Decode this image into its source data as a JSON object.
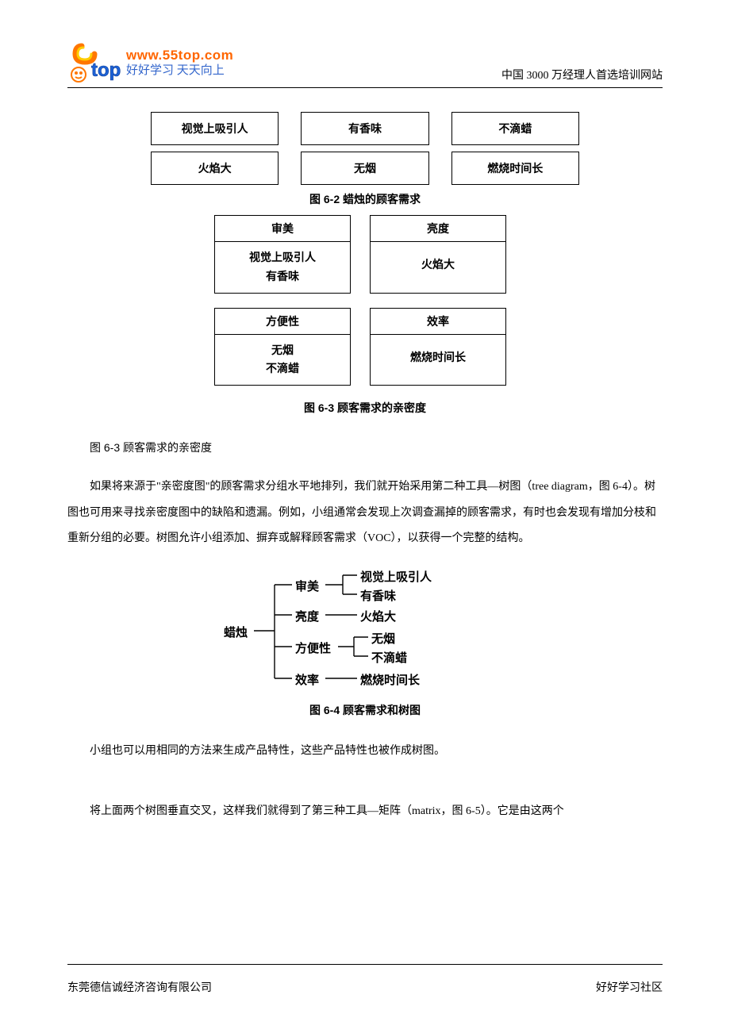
{
  "header": {
    "logo_url": "www.55top.com",
    "logo_slogan": "好好学习 天天向上",
    "right_text": "中国 3000 万经理人首选培训网站",
    "logo_colors": {
      "five_outer": "#ff7700",
      "five_inner": "#ffcc00",
      "top_text": "#1e63d8",
      "url": "#ff6600",
      "slogan": "#3366cc"
    }
  },
  "fig62": {
    "rows": [
      [
        "视觉上吸引人",
        "有香味",
        "不滴蜡"
      ],
      [
        "火焰大",
        "无烟",
        "燃烧时间长"
      ]
    ],
    "caption": "图 6-2  蜡烛的顾客需求"
  },
  "fig63": {
    "groups": [
      [
        {
          "head": "审美",
          "body": [
            "视觉上吸引人",
            "有香味"
          ]
        },
        {
          "head": "亮度",
          "body": [
            "火焰大"
          ]
        }
      ],
      [
        {
          "head": "方便性",
          "body": [
            "无烟",
            "不滴蜡"
          ]
        },
        {
          "head": "效率",
          "body": [
            "燃烧时间长"
          ]
        }
      ]
    ],
    "caption": "图 6-3  顾客需求的亲密度"
  },
  "text": {
    "caption63": "图 6-3 顾客需求的亲密度",
    "para1": "如果将来源于\"亲密度图\"的顾客需求分组水平地排列，我们就开始采用第二种工具—树图（tree diagram，图 6-4）。树图也可用来寻找亲密度图中的缺陷和遗漏。例如，小组通常会发现上次调查漏掉的顾客需求，有时也会发现有增加分枝和重新分组的必要。树图允许小组添加、摒弃或解释顾客需求（VOC），以获得一个完整的结构。",
    "para2": "小组也可以用相同的方法来生成产品特性，这些产品特性也被作成树图。",
    "para3": "将上面两个树图垂直交叉，这样我们就得到了第三种工具—矩阵（matrix，图 6-5）。它是由这两个"
  },
  "fig64": {
    "root": "蜡烛",
    "branches": [
      {
        "label": "审美",
        "leaves": [
          "视觉上吸引人",
          "有香味"
        ]
      },
      {
        "label": "亮度",
        "leaves": [
          "火焰大"
        ]
      },
      {
        "label": "方便性",
        "leaves": [
          "无烟",
          "不滴蜡"
        ]
      },
      {
        "label": "效率",
        "leaves": [
          "燃烧时间长"
        ]
      }
    ],
    "caption": "图 6-4  顾客需求和树图"
  },
  "footer": {
    "left": "东莞德信诚经济咨询有限公司",
    "right": "好好学习社区"
  }
}
